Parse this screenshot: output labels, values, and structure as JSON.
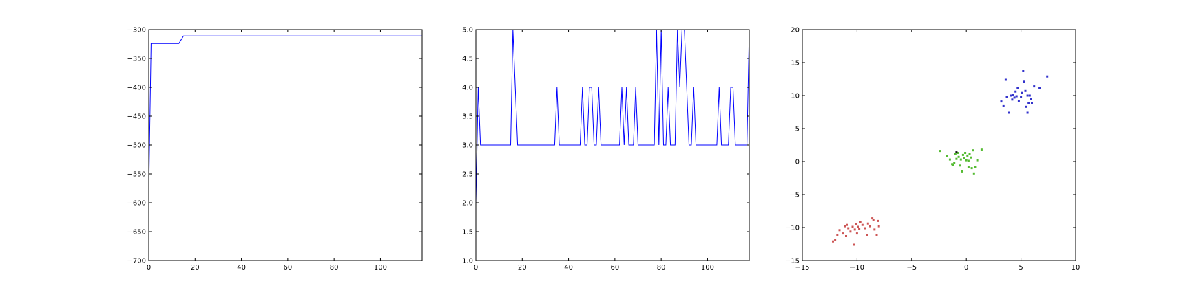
{
  "chart_data": [
    {
      "type": "line",
      "title": "",
      "xlabel": "",
      "ylabel": "",
      "xlim": [
        0,
        118
      ],
      "ylim": [
        -700,
        -300
      ],
      "xticks": [
        "0",
        "20",
        "40",
        "60",
        "80",
        "100"
      ],
      "yticks": [
        "−700",
        "−650",
        "−600",
        "−550",
        "−500",
        "−450",
        "−400",
        "−350",
        "−300"
      ],
      "color": "#0000ff",
      "series": [
        {
          "x": [
            0,
            1,
            13,
            15,
            118
          ],
          "y": [
            -585,
            -324,
            -324,
            -311,
            -311
          ]
        }
      ]
    },
    {
      "type": "line",
      "title": "",
      "xlabel": "",
      "ylabel": "",
      "xlim": [
        0,
        118
      ],
      "ylim": [
        1.0,
        5.0
      ],
      "xticks": [
        "0",
        "20",
        "40",
        "60",
        "80",
        "100"
      ],
      "yticks": [
        "1.0",
        "1.5",
        "2.0",
        "2.5",
        "3.0",
        "3.5",
        "4.0",
        "4.5",
        "5.0"
      ],
      "color": "#0000ff",
      "series": [
        {
          "x": [
            0,
            1,
            2,
            15,
            16,
            18,
            34,
            35,
            36,
            45,
            46,
            47,
            48,
            49,
            50,
            51,
            52,
            53,
            54,
            62,
            63,
            64,
            65,
            66,
            68,
            69,
            70,
            77,
            78,
            79,
            80,
            81,
            82,
            83,
            84,
            86,
            87,
            88,
            89,
            90,
            92,
            93,
            94,
            95,
            104,
            105,
            106,
            109,
            110,
            111,
            112,
            117,
            118
          ],
          "y": [
            2.0,
            4.0,
            3.0,
            3.0,
            5.0,
            3.0,
            3.0,
            4.0,
            3.0,
            3.0,
            4.0,
            3.0,
            3.0,
            4.0,
            4.0,
            3.0,
            3.0,
            4.0,
            3.0,
            3.0,
            4.0,
            3.0,
            4.0,
            3.0,
            3.0,
            4.0,
            3.0,
            3.0,
            5.0,
            3.0,
            5.0,
            3.0,
            3.0,
            4.0,
            3.0,
            3.0,
            5.0,
            4.0,
            5.0,
            5.0,
            3.0,
            3.0,
            4.0,
            3.0,
            3.0,
            4.0,
            3.0,
            3.0,
            4.0,
            4.0,
            3.0,
            3.0,
            5.0
          ]
        }
      ]
    },
    {
      "type": "scatter",
      "title": "",
      "xlabel": "",
      "ylabel": "",
      "xlim": [
        -15,
        10
      ],
      "ylim": [
        -15,
        20
      ],
      "xticks": [
        "−15",
        "−10",
        "−5",
        "0",
        "5",
        "10"
      ],
      "yticks": [
        "−15",
        "−10",
        "−5",
        "0",
        "5",
        "10",
        "15",
        "20"
      ],
      "series": [
        {
          "color": "#3333cc",
          "points": [
            [
              3.2,
              9.1
            ],
            [
              3.4,
              8.4
            ],
            [
              3.6,
              12.4
            ],
            [
              3.7,
              9.8
            ],
            [
              3.9,
              7.4
            ],
            [
              4.1,
              10.0
            ],
            [
              4.2,
              9.4
            ],
            [
              4.4,
              9.7
            ],
            [
              4.5,
              10.6
            ],
            [
              4.6,
              9.9
            ],
            [
              4.7,
              11.1
            ],
            [
              4.8,
              9.2
            ],
            [
              5.0,
              9.8
            ],
            [
              5.1,
              10.4
            ],
            [
              5.2,
              13.7
            ],
            [
              5.3,
              12.1
            ],
            [
              5.4,
              10.7
            ],
            [
              5.5,
              8.3
            ],
            [
              5.6,
              7.4
            ],
            [
              5.7,
              8.9
            ],
            [
              5.8,
              10.0
            ],
            [
              5.9,
              9.5
            ],
            [
              6.0,
              8.8
            ],
            [
              6.2,
              11.4
            ],
            [
              6.7,
              11.1
            ],
            [
              7.4,
              12.9
            ],
            [
              4.3,
              10.1
            ],
            [
              5.6,
              10.0
            ]
          ]
        },
        {
          "color": "#55bb33",
          "points": [
            [
              -2.4,
              1.6
            ],
            [
              -1.8,
              0.8
            ],
            [
              -1.5,
              0.3
            ],
            [
              -1.3,
              -0.4
            ],
            [
              -1.1,
              -0.2
            ],
            [
              -1.0,
              1.2
            ],
            [
              -0.9,
              0.4
            ],
            [
              -0.8,
              1.3
            ],
            [
              -0.7,
              0.7
            ],
            [
              -0.6,
              -0.6
            ],
            [
              -0.5,
              0.3
            ],
            [
              -0.4,
              -1.5
            ],
            [
              -0.3,
              1.0
            ],
            [
              -0.2,
              0.5
            ],
            [
              -0.1,
              1.3
            ],
            [
              0.0,
              0.2
            ],
            [
              0.1,
              0.9
            ],
            [
              0.2,
              -0.8
            ],
            [
              0.3,
              1.1
            ],
            [
              0.4,
              0.6
            ],
            [
              0.5,
              -1.0
            ],
            [
              0.6,
              1.7
            ],
            [
              0.7,
              -1.8
            ],
            [
              0.8,
              -0.8
            ],
            [
              1.0,
              0.2
            ],
            [
              1.4,
              1.8
            ],
            [
              -1.2,
              -0.5
            ],
            [
              0.2,
              0.1
            ]
          ]
        },
        {
          "color": "#cc5555",
          "points": [
            [
              -12.2,
              -12.1
            ],
            [
              -12.0,
              -11.9
            ],
            [
              -11.8,
              -11.2
            ],
            [
              -11.6,
              -10.4
            ],
            [
              -11.3,
              -10.9
            ],
            [
              -11.1,
              -9.8
            ],
            [
              -11.0,
              -11.3
            ],
            [
              -10.8,
              -10.1
            ],
            [
              -10.6,
              -10.6
            ],
            [
              -10.4,
              -9.9
            ],
            [
              -10.3,
              -12.6
            ],
            [
              -10.2,
              -10.3
            ],
            [
              -10.1,
              -9.5
            ],
            [
              -10.0,
              -10.9
            ],
            [
              -9.9,
              -9.9
            ],
            [
              -9.8,
              -10.2
            ],
            [
              -9.7,
              -9.2
            ],
            [
              -9.5,
              -9.6
            ],
            [
              -9.3,
              -10.1
            ],
            [
              -9.1,
              -11.1
            ],
            [
              -9.0,
              -9.4
            ],
            [
              -8.8,
              -9.8
            ],
            [
              -8.6,
              -8.6
            ],
            [
              -8.5,
              -8.9
            ],
            [
              -8.4,
              -10.3
            ],
            [
              -8.2,
              -11.1
            ],
            [
              -8.1,
              -9.0
            ],
            [
              -8.0,
              -9.8
            ],
            [
              -10.9,
              -9.6
            ]
          ]
        },
        {
          "color": "#111111",
          "points": [
            [
              -0.9,
              1.4
            ]
          ]
        }
      ]
    }
  ]
}
